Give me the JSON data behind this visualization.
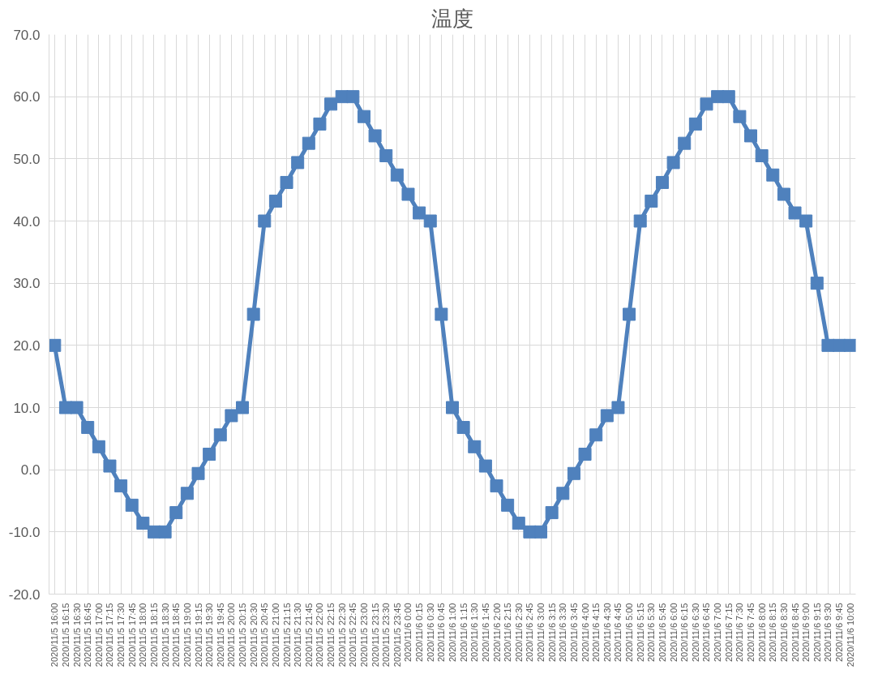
{
  "chart_data": {
    "type": "line",
    "title": "温度",
    "categories": [
      "2020/11/5 16:00",
      "2020/11/5 16:15",
      "2020/11/5 16:30",
      "2020/11/5 16:45",
      "2020/11/5 17:00",
      "2020/11/5 17:15",
      "2020/11/5 17:30",
      "2020/11/5 17:45",
      "2020/11/5 18:00",
      "2020/11/5 18:15",
      "2020/11/5 18:30",
      "2020/11/5 18:45",
      "2020/11/5 19:00",
      "2020/11/5 19:15",
      "2020/11/5 19:30",
      "2020/11/5 19:45",
      "2020/11/5 20:00",
      "2020/11/5 20:15",
      "2020/11/5 20:30",
      "2020/11/5 20:45",
      "2020/11/5 21:00",
      "2020/11/5 21:15",
      "2020/11/5 21:30",
      "2020/11/5 21:45",
      "2020/11/5 22:00",
      "2020/11/5 22:15",
      "2020/11/5 22:30",
      "2020/11/5 22:45",
      "2020/11/5 23:00",
      "2020/11/5 23:15",
      "2020/11/5 23:30",
      "2020/11/5 23:45",
      "2020/11/6 0:00",
      "2020/11/6 0:15",
      "2020/11/6 0:30",
      "2020/11/6 0:45",
      "2020/11/6 1:00",
      "2020/11/6 1:15",
      "2020/11/6 1:30",
      "2020/11/6 1:45",
      "2020/11/6 2:00",
      "2020/11/6 2:15",
      "2020/11/6 2:30",
      "2020/11/6 2:45",
      "2020/11/6 3:00",
      "2020/11/6 3:15",
      "2020/11/6 3:30",
      "2020/11/6 3:45",
      "2020/11/6 4:00",
      "2020/11/6 4:15",
      "2020/11/6 4:30",
      "2020/11/6 4:45",
      "2020/11/6 5:00",
      "2020/11/6 5:15",
      "2020/11/6 5:30",
      "2020/11/6 5:45",
      "2020/11/6 6:00",
      "2020/11/6 6:15",
      "2020/11/6 6:30",
      "2020/11/6 6:45",
      "2020/11/6 7:00",
      "2020/11/6 7:15",
      "2020/11/6 7:30",
      "2020/11/6 7:45",
      "2020/11/6 8:00",
      "2020/11/6 8:15",
      "2020/11/6 8:30",
      "2020/11/6 8:45",
      "2020/11/6 9:00",
      "2020/11/6 9:15",
      "2020/11/6 9:30",
      "2020/11/6 9:45",
      "2020/11/6 10:00"
    ],
    "series": [
      {
        "color": "#4f81bd",
        "values": [
          20,
          10,
          10,
          6.8,
          3.7,
          0.6,
          -2.6,
          -5.7,
          -8.6,
          -10,
          -10,
          -6.9,
          -3.8,
          -0.6,
          2.5,
          5.6,
          8.7,
          10,
          25,
          40,
          43.2,
          46.2,
          49.4,
          52.5,
          55.6,
          58.8,
          60,
          60,
          56.8,
          53.7,
          50.5,
          47.4,
          44.3,
          41.3,
          40,
          25,
          10,
          6.8,
          3.7,
          0.6,
          -2.6,
          -5.7,
          -8.6,
          -10,
          -10,
          -6.9,
          -3.8,
          -0.6,
          2.5,
          5.6,
          8.7,
          10,
          25,
          40,
          43.2,
          46.2,
          49.4,
          52.5,
          55.6,
          58.8,
          60,
          60,
          56.8,
          53.7,
          50.5,
          47.4,
          44.3,
          41.3,
          40,
          30,
          20,
          20,
          20
        ]
      }
    ],
    "ylim": [
      -20,
      70
    ],
    "yticks": [
      {
        "value": -20,
        "label": "-20.0"
      },
      {
        "value": -10,
        "label": "-10.0"
      },
      {
        "value": 0,
        "label": "0.0"
      },
      {
        "value": 10,
        "label": "10.0"
      },
      {
        "value": 20,
        "label": "20.0"
      },
      {
        "value": 30,
        "label": "30.0"
      },
      {
        "value": 40,
        "label": "40.0"
      },
      {
        "value": 50,
        "label": "50.0"
      },
      {
        "value": 60,
        "label": "60.0"
      },
      {
        "value": 70,
        "label": "70.0"
      }
    ],
    "grid": true,
    "marker": "square",
    "line_style": "solid"
  }
}
